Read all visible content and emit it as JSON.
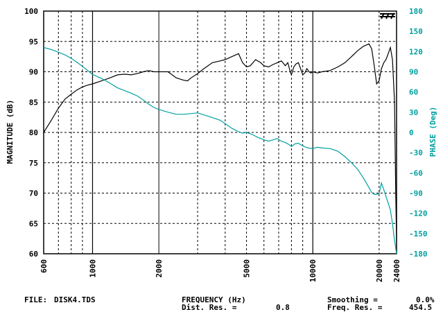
{
  "chart_data": {
    "type": "line",
    "xlabel": "FREQUENCY (Hz)",
    "ylabel": "MAGNITUDE (dB)",
    "y2label": "PHASE (Deg)",
    "x_scale": "log",
    "xlim": [
      600,
      24000
    ],
    "ylim": [
      60,
      100
    ],
    "y2lim": [
      -180,
      180
    ],
    "x_ticks": [
      600,
      1000,
      2000,
      5000,
      10000,
      20000,
      24000
    ],
    "x_tick_labels": [
      "600",
      "1000",
      "2000",
      "5000",
      "10000",
      "20000",
      "24000"
    ],
    "y_ticks": [
      60,
      65,
      70,
      75,
      80,
      85,
      90,
      95,
      100
    ],
    "y_tick_labels": [
      "60",
      "65",
      "70",
      "75",
      "80",
      "85",
      "90",
      "95",
      "100"
    ],
    "y2_ticks": [
      180,
      150,
      120,
      90,
      60,
      30,
      0,
      -30,
      -60,
      -90,
      -120,
      -150,
      -180
    ],
    "y2_tick_labels": [
      "180",
      "150",
      "120",
      "90",
      "60",
      "30",
      "0",
      "-30",
      "-60",
      "-90",
      "-120",
      "-150",
      "-180"
    ],
    "grid": true,
    "colors": {
      "magnitude": "#000000",
      "phase": "#00a0a0"
    },
    "series": [
      {
        "axis": "left",
        "x": [
          600,
          650,
          700,
          750,
          800,
          850,
          900,
          950,
          1000,
          1100,
          1200,
          1300,
          1400,
          1500,
          1600,
          1700,
          1800,
          1900,
          2000,
          2200,
          2400,
          2600,
          2700,
          2800,
          3000,
          3200,
          3500,
          3800,
          4000,
          4300,
          4600,
          4800,
          5000,
          5200,
          5500,
          5800,
          6000,
          6300,
          6600,
          6900,
          7200,
          7500,
          7700,
          7900,
          8000,
          8200,
          8400,
          8600,
          8800,
          9000,
          9200,
          9400,
          9600,
          9800,
          10000,
          10500,
          11000,
          12000,
          13000,
          14000,
          15000,
          16000,
          17000,
          18000,
          18500,
          19000,
          19500,
          20000,
          20500,
          21000,
          21500,
          22000,
          22500,
          23000,
          23500,
          23800,
          24000
        ],
        "values": [
          80,
          82,
          84,
          85.5,
          86.3,
          87,
          87.5,
          87.8,
          88,
          88.5,
          89,
          89.5,
          89.6,
          89.5,
          89.7,
          90,
          90.2,
          90,
          90,
          90,
          89,
          88.6,
          88.5,
          89,
          89.7,
          90.5,
          91.5,
          91.8,
          92,
          92.5,
          93,
          91.5,
          90.8,
          91,
          92,
          91.5,
          91,
          90.8,
          91.2,
          91.5,
          91.8,
          91,
          91.5,
          90,
          89.5,
          90.8,
          91.3,
          91.5,
          90.5,
          89.5,
          89.8,
          90.5,
          90,
          89.8,
          90,
          89.8,
          90,
          90.2,
          90.8,
          91.5,
          92.5,
          93.5,
          94.2,
          94.6,
          93.8,
          91,
          88,
          88.5,
          90.5,
          91.5,
          92,
          93,
          94,
          92,
          85,
          70,
          62
        ]
      },
      {
        "axis": "right",
        "x": [
          600,
          650,
          700,
          750,
          800,
          850,
          900,
          950,
          1000,
          1100,
          1200,
          1300,
          1400,
          1500,
          1600,
          1700,
          1800,
          1900,
          2000,
          2200,
          2400,
          2600,
          2800,
          3000,
          3200,
          3500,
          3800,
          4000,
          4300,
          4600,
          4800,
          5000,
          5300,
          5600,
          6000,
          6300,
          6600,
          6900,
          7200,
          7500,
          7800,
          8000,
          8300,
          8600,
          9000,
          9500,
          10000,
          10500,
          11000,
          12000,
          13000,
          14000,
          15000,
          16000,
          17000,
          18000,
          18500,
          19000,
          19500,
          20000,
          20500,
          21000,
          21500,
          22000,
          22500,
          23000,
          23500,
          24000
        ],
        "values": [
          126,
          123,
          119,
          115,
          110,
          104,
          98,
          92,
          86,
          80,
          73,
          66,
          62,
          58,
          54,
          48,
          42,
          37,
          34,
          30,
          27,
          27,
          28,
          29,
          26,
          22,
          18,
          13,
          6,
          1,
          -1,
          0,
          -3,
          -7,
          -11,
          -13,
          -11,
          -9,
          -13,
          -15,
          -18,
          -21,
          -17,
          -16,
          -20,
          -23,
          -24,
          -22,
          -23,
          -24,
          -28,
          -36,
          -45,
          -55,
          -68,
          -82,
          -89,
          -92,
          -92,
          -91,
          -75,
          -85,
          -95,
          -105,
          -115,
          -135,
          -160,
          -180
        ]
      }
    ]
  },
  "footer": {
    "file_label": "FILE:",
    "file_name": "DISK4.TDS",
    "dist_res_label": "Dist. Res. =",
    "dist_res_value": "0.8",
    "smoothing_label": "Smoothing =",
    "smoothing_value": "0.0%",
    "freq_res_label": "Freq. Res. =",
    "freq_res_value": "454.5"
  },
  "logo": {
    "name": "tef-logo",
    "text": "TEF"
  }
}
